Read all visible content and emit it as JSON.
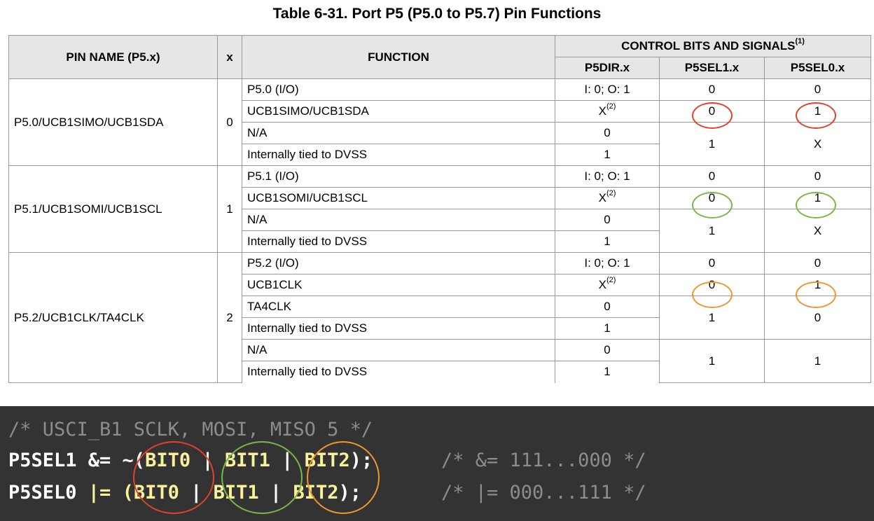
{
  "title": "Table 6-31. Port P5 (P5.0 to P5.7) Pin Functions",
  "headers": {
    "pin_name": "PIN NAME (P5.x)",
    "x": "x",
    "function": "FUNCTION",
    "control": "CONTROL BITS AND SIGNALS",
    "control_note": "(1)",
    "dir": "P5DIR.x",
    "sel1": "P5SEL1.x",
    "sel0": "P5SEL0.x"
  },
  "groups": [
    {
      "pin": "P5.0/UCB1SIMO/UCB1SDA",
      "x": "0",
      "rows": [
        {
          "fn": "P5.0 (I/O)",
          "dir": "I: 0; O: 1",
          "sel1": "0",
          "sel0": "0"
        },
        {
          "fn": "UCB1SIMO/UCB1SDA",
          "dir": "X",
          "dir_note": "(2)",
          "sel1": "0",
          "sel0": "1"
        },
        {
          "fn": "N/A",
          "dir": "0"
        },
        {
          "fn": "Internally tied to DVSS",
          "dir": "1"
        }
      ],
      "merged": {
        "sel1": "1",
        "sel0": "X"
      }
    },
    {
      "pin": "P5.1/UCB1SOMI/UCB1SCL",
      "x": "1",
      "rows": [
        {
          "fn": "P5.1 (I/O)",
          "dir": "I: 0; O: 1",
          "sel1": "0",
          "sel0": "0"
        },
        {
          "fn": "UCB1SOMI/UCB1SCL",
          "dir": "X",
          "dir_note": "(2)",
          "sel1": "0",
          "sel0": "1"
        },
        {
          "fn": "N/A",
          "dir": "0"
        },
        {
          "fn": "Internally tied to DVSS",
          "dir": "1"
        }
      ],
      "merged": {
        "sel1": "1",
        "sel0": "X"
      }
    },
    {
      "pin": "P5.2/UCB1CLK/TA4CLK",
      "x": "2",
      "rows": [
        {
          "fn": "P5.2 (I/O)",
          "dir": "I: 0; O: 1",
          "sel1": "0",
          "sel0": "0"
        },
        {
          "fn": "UCB1CLK",
          "dir": "X",
          "dir_note": "(2)",
          "sel1": "0",
          "sel0": "1"
        },
        {
          "fn": "TA4CLK",
          "dir": "0"
        },
        {
          "fn": "Internally tied to DVSS",
          "dir": "1"
        },
        {
          "fn": "N/A",
          "dir": "0"
        },
        {
          "fn": "Internally tied to DVSS",
          "dir": "1"
        }
      ],
      "merged": {
        "sel1": "1",
        "sel0": "0"
      },
      "merged2": {
        "sel1": "1",
        "sel0": "1"
      }
    }
  ],
  "code": {
    "comment": "/* USCI_B1 SCLK, MOSI, MISO 5 */",
    "line1": {
      "reg": "P5SEL1 &= ~(",
      "b0": "BIT0",
      "sep1": " | ",
      "b1": "BIT1",
      "sep2": " | ",
      "b2": "BIT2",
      "end": ");",
      "comment": "/* &= 111...000 */"
    },
    "line2": {
      "reg": "P5SEL0 ",
      "op": "|=",
      "open": " (",
      "b0": "BIT0",
      "sep1": " | ",
      "b1": "BIT1",
      "sep2": " | ",
      "b2": "BIT2",
      "end": ");",
      "comment": "/* |= 000...111 */"
    }
  },
  "colors": {
    "red": "#e0412a",
    "green": "#7ab648",
    "orange": "#f0962e",
    "code_bg": "#333333",
    "highlight": "#f9f29a"
  }
}
